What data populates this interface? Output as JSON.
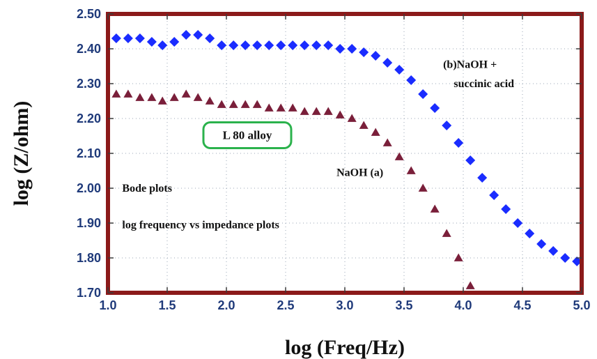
{
  "chart_data": {
    "type": "scatter",
    "xlabel": "log (Freq/Hz)",
    "ylabel": "log (Z/ohm)",
    "xlim": [
      1.0,
      5.0
    ],
    "ylim": [
      1.7,
      2.5
    ],
    "xticks": [
      "1.0",
      "1.5",
      "2.0",
      "2.5",
      "3.0",
      "3.5",
      "4.0",
      "4.5",
      "5.0"
    ],
    "yticks": [
      "1.70",
      "1.80",
      "1.90",
      "2.00",
      "2.10",
      "2.20",
      "2.30",
      "2.40",
      "2.50"
    ],
    "grid": "dotted",
    "series": [
      {
        "name": "(b)NaOH + succinic acid",
        "marker": "diamond",
        "color": "#1a2cff",
        "x": [
          1.07,
          1.17,
          1.27,
          1.37,
          1.46,
          1.56,
          1.66,
          1.76,
          1.86,
          1.96,
          2.06,
          2.16,
          2.26,
          2.36,
          2.46,
          2.56,
          2.66,
          2.76,
          2.86,
          2.96,
          3.06,
          3.16,
          3.26,
          3.36,
          3.46,
          3.56,
          3.66,
          3.76,
          3.86,
          3.96,
          4.06,
          4.16,
          4.26,
          4.36,
          4.46,
          4.56,
          4.66,
          4.76,
          4.86,
          4.96
        ],
        "y": [
          2.43,
          2.43,
          2.43,
          2.42,
          2.41,
          2.42,
          2.44,
          2.44,
          2.43,
          2.41,
          2.41,
          2.41,
          2.41,
          2.41,
          2.41,
          2.41,
          2.41,
          2.41,
          2.41,
          2.4,
          2.4,
          2.39,
          2.38,
          2.36,
          2.34,
          2.31,
          2.27,
          2.23,
          2.18,
          2.13,
          2.08,
          2.03,
          1.98,
          1.94,
          1.9,
          1.87,
          1.84,
          1.82,
          1.8,
          1.79
        ]
      },
      {
        "name": "NaOH (a)",
        "marker": "triangle",
        "color": "#7a1f3a",
        "x": [
          1.07,
          1.17,
          1.27,
          1.37,
          1.46,
          1.56,
          1.66,
          1.76,
          1.86,
          1.96,
          2.06,
          2.16,
          2.26,
          2.36,
          2.46,
          2.56,
          2.66,
          2.76,
          2.86,
          2.96,
          3.06,
          3.16,
          3.26,
          3.36,
          3.46,
          3.56,
          3.66,
          3.76,
          3.86,
          3.96,
          4.06
        ],
        "y": [
          2.27,
          2.27,
          2.26,
          2.26,
          2.25,
          2.26,
          2.27,
          2.26,
          2.25,
          2.24,
          2.24,
          2.24,
          2.24,
          2.23,
          2.23,
          2.23,
          2.22,
          2.22,
          2.22,
          2.21,
          2.2,
          2.18,
          2.16,
          2.13,
          2.09,
          2.05,
          2.0,
          1.94,
          1.87,
          1.8,
          1.72
        ]
      }
    ],
    "annotations": [
      {
        "text": "(b)NaOH +",
        "x": 3.83,
        "y": 2.345
      },
      {
        "text": "succinic acid",
        "x": 3.92,
        "y": 2.29
      },
      {
        "text": "NaOH (a)",
        "x": 2.93,
        "y": 2.035
      },
      {
        "text": "Bode plots",
        "x": 1.12,
        "y": 1.99
      },
      {
        "text": "log frequency vs impedance plots",
        "x": 1.12,
        "y": 1.885
      }
    ],
    "boxed_label": {
      "text": "L 80 alloy",
      "x": 2.1,
      "y": 2.135,
      "border_color": "#2bb24c"
    },
    "frame_color": "#8b1a1a",
    "tick_color": "#1f3a7a"
  }
}
